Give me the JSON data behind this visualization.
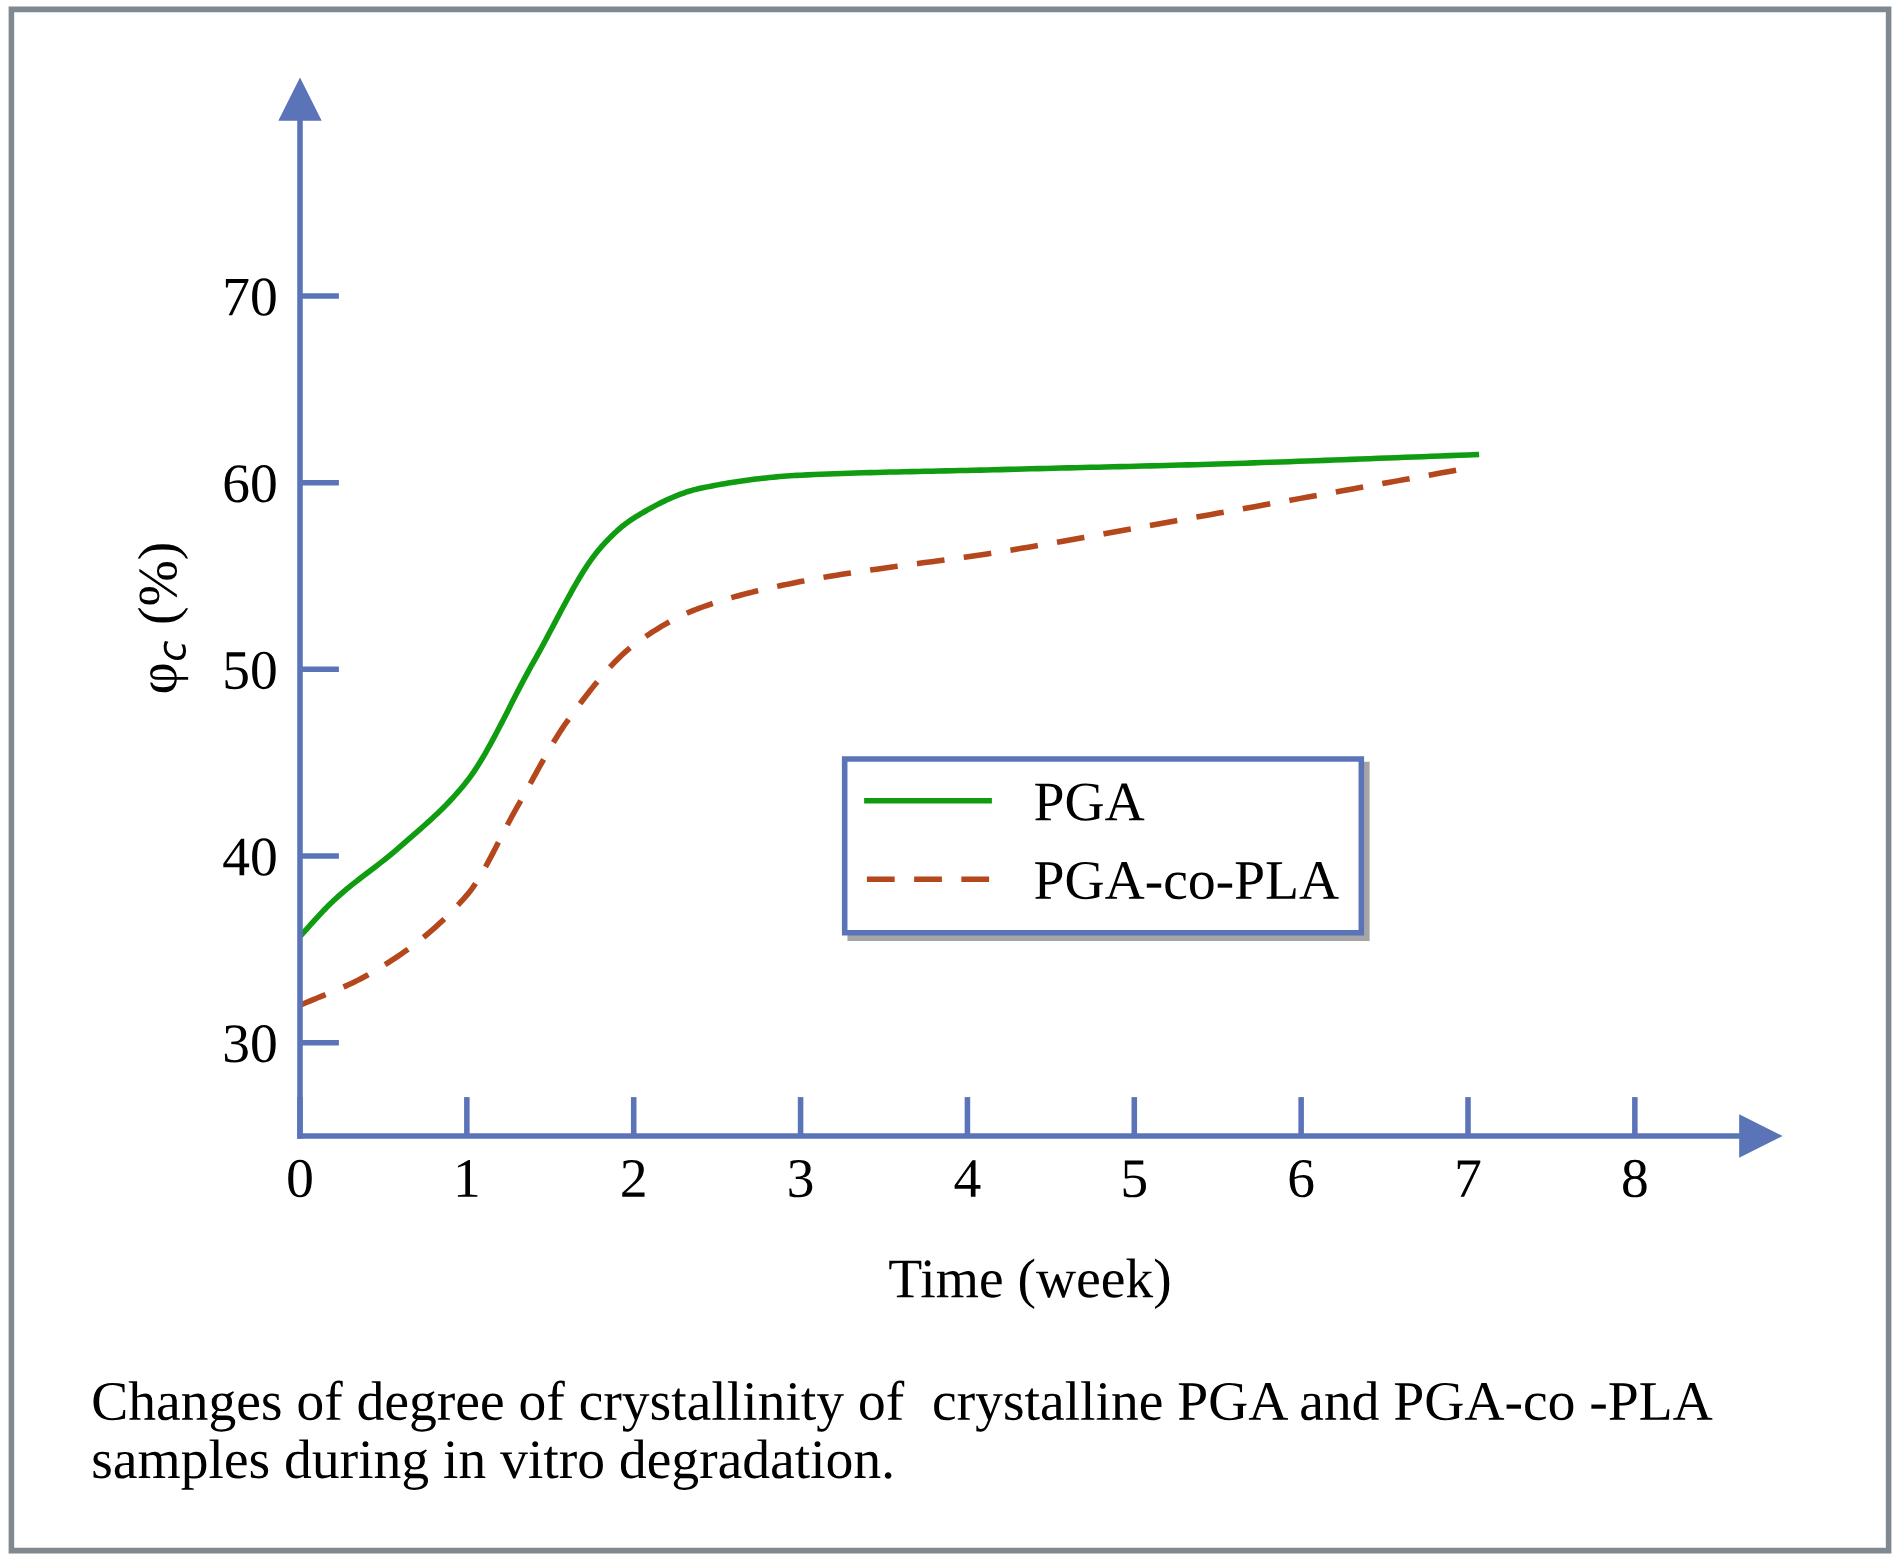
{
  "chart_data": {
    "type": "line",
    "xlabel": "Time (week)",
    "ylabel": "φ$_{c}$ (%)",
    "xlim": [
      0,
      8.75
    ],
    "ylim": [
      25,
      80.5
    ],
    "xticks": [
      0,
      1,
      2,
      3,
      4,
      5,
      6,
      7,
      8
    ],
    "yticks": [
      30,
      40,
      50,
      60,
      70
    ],
    "series": [
      {
        "name": "PGA",
        "color": "#109c10",
        "line_style": "solid",
        "x": [
          0,
          0.2,
          0.6,
          1.0,
          1.4,
          1.8,
          2.0,
          2.4,
          3.0,
          4.2,
          5.5,
          7.05
        ],
        "values": [
          35.7,
          37.6,
          40.5,
          44.0,
          50.4,
          56.5,
          58.1,
          59.7,
          60.4,
          60.7,
          61.0,
          61.5
        ]
      },
      {
        "name": "PGA-co-PLA",
        "color": "#b5471c",
        "line_style": "dashed",
        "x": [
          0,
          0.4,
          1.0,
          1.3,
          1.6,
          2.0,
          2.4,
          3.0,
          4.2,
          5.4,
          6.95
        ],
        "values": [
          32.0,
          33.6,
          37.9,
          42.6,
          47.2,
          51.3,
          53.3,
          54.7,
          56.3,
          58.2,
          60.7
        ]
      }
    ],
    "legend": "center",
    "grid": false,
    "marker": "none",
    "annotations": [
      "Changes of degree of crystallinity of  crystalline PGA and PGA-co -PLA samples during in vitro degradation."
    ]
  }
}
